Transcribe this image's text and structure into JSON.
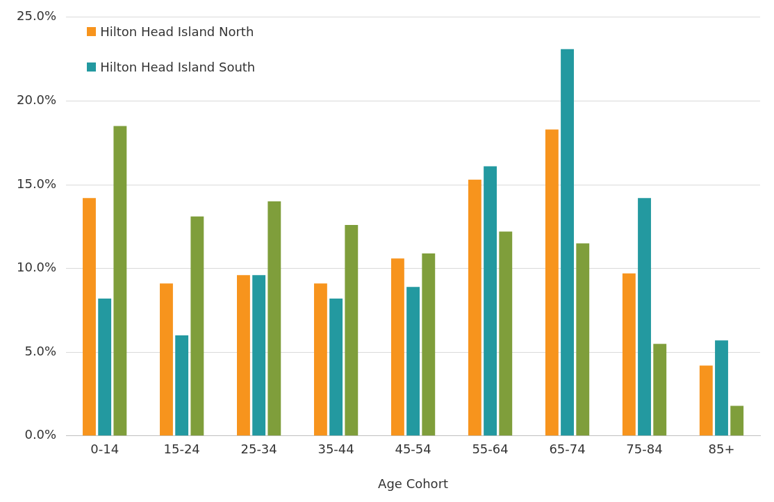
{
  "chart_data": {
    "type": "bar",
    "xlabel": "Age Cohort",
    "categories": [
      "0-14",
      "15-24",
      "25-34",
      "35-44",
      "45-54",
      "55-64",
      "65-74",
      "75-84",
      "85+"
    ],
    "series": [
      {
        "name": "Hilton Head Island North",
        "color": "#f7941d",
        "values": [
          14.2,
          9.1,
          9.6,
          9.1,
          10.6,
          15.3,
          18.3,
          9.7,
          4.2
        ]
      },
      {
        "name": "Hilton Head Island South",
        "color": "#2399a0",
        "values": [
          8.2,
          6.0,
          9.6,
          8.2,
          8.9,
          16.1,
          23.1,
          14.2,
          5.7
        ]
      },
      {
        "color": "#7f9e3b",
        "values": [
          18.5,
          13.1,
          14.0,
          12.6,
          10.9,
          12.2,
          11.5,
          5.5,
          1.8
        ]
      }
    ],
    "ylim": [
      0,
      25
    ],
    "yticks": [
      {
        "value": 0,
        "label": "0.0%"
      },
      {
        "value": 5,
        "label": "5.0%"
      },
      {
        "value": 10,
        "label": "10.0%"
      },
      {
        "value": 15,
        "label": "15.0%"
      },
      {
        "value": 20,
        "label": "20.0%"
      },
      {
        "value": 25,
        "label": "25.0%"
      }
    ],
    "grid": "y",
    "legend": "top left"
  }
}
